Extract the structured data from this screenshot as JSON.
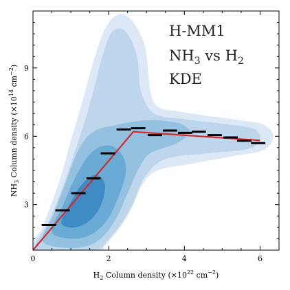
{
  "chart_data": {
    "type": "scatter",
    "annotations": {
      "line1": "H-MM1",
      "line2": "NH3 vs H2",
      "line2_parts": {
        "a": "NH",
        "a_sub": "3",
        "b": " vs H",
        "b_sub": "2"
      },
      "line3": "KDE"
    },
    "xlabel": "H2 Column density (×10^22 cm^−2)",
    "xlabel_parts": {
      "a": "H",
      "a_sub": "2",
      "b": " Column density (×10",
      "b_sup": "22",
      "c": " cm",
      "c_sup": "−2",
      "d": ")"
    },
    "ylabel": "NH3 Column density (×10^14 cm^−2)",
    "ylabel_parts": {
      "a": "NH",
      "a_sub": "3",
      "b": " Column density (×10",
      "b_sup": "14",
      "c": " cm",
      "c_sup": "−2",
      "d": ")"
    },
    "xlim": [
      0,
      6.5
    ],
    "ylim": [
      1.0,
      11.5
    ],
    "x_ticks": [
      0,
      2,
      4,
      6
    ],
    "y_ticks": [
      3,
      6,
      9
    ],
    "x_tick_labels": [
      "0",
      "2",
      "4",
      "6"
    ],
    "y_tick_labels": [
      "3",
      "6",
      "9"
    ],
    "grid": false,
    "binned_medians": {
      "name": "",
      "color": "#000000",
      "bin_halfwidth": 0.19,
      "x": [
        0.42,
        0.78,
        1.2,
        1.6,
        1.98,
        2.4,
        2.78,
        3.22,
        3.62,
        4.02,
        4.38,
        4.8,
        5.22,
        5.58,
        5.95
      ],
      "y": [
        2.1,
        2.75,
        3.5,
        4.15,
        5.25,
        6.3,
        6.35,
        6.05,
        6.25,
        6.15,
        6.2,
        6.05,
        5.95,
        5.8,
        5.7
      ]
    },
    "fit_line": {
      "color": "#d62728",
      "x": [
        0,
        2.65,
        6.0
      ],
      "y": [
        1.0,
        6.2,
        5.82
      ]
    },
    "kde_levels": {
      "colors": [
        "#dce8f5",
        "#bdd6ec",
        "#95c1e0",
        "#6aabd5",
        "#3f8bc4"
      ],
      "contours": [
        [
          [
            0.0,
            1.0
          ],
          [
            0.25,
            2.0
          ],
          [
            0.5,
            3.1
          ],
          [
            0.75,
            4.3
          ],
          [
            1.0,
            5.8
          ],
          [
            1.3,
            7.5
          ],
          [
            1.6,
            9.3
          ],
          [
            1.9,
            10.7
          ],
          [
            2.2,
            11.3
          ],
          [
            2.55,
            11.2
          ],
          [
            2.95,
            10.0
          ],
          [
            3.1,
            8.0
          ],
          [
            3.3,
            7.3
          ],
          [
            3.8,
            7.1
          ],
          [
            4.6,
            6.9
          ],
          [
            5.5,
            6.7
          ],
          [
            6.1,
            6.5
          ],
          [
            6.35,
            6.0
          ],
          [
            6.1,
            5.4
          ],
          [
            5.2,
            5.1
          ],
          [
            4.2,
            4.8
          ],
          [
            3.3,
            4.5
          ],
          [
            2.9,
            3.9
          ],
          [
            2.6,
            2.8
          ],
          [
            2.3,
            2.0
          ],
          [
            1.9,
            1.2
          ],
          [
            1.7,
            1.0
          ]
        ],
        [
          [
            0.1,
            1.0
          ],
          [
            0.4,
            2.2
          ],
          [
            0.7,
            3.4
          ],
          [
            1.0,
            4.8
          ],
          [
            1.3,
            6.3
          ],
          [
            1.6,
            8.0
          ],
          [
            1.85,
            9.6
          ],
          [
            2.1,
            10.6
          ],
          [
            2.45,
            10.6
          ],
          [
            2.75,
            9.5
          ],
          [
            2.85,
            8.0
          ],
          [
            3.2,
            7.0
          ],
          [
            4.0,
            6.75
          ],
          [
            5.0,
            6.55
          ],
          [
            5.8,
            6.35
          ],
          [
            6.0,
            5.9
          ],
          [
            5.7,
            5.45
          ],
          [
            4.6,
            5.25
          ],
          [
            3.5,
            5.0
          ],
          [
            2.95,
            4.2
          ],
          [
            2.65,
            3.1
          ],
          [
            2.35,
            2.2
          ],
          [
            1.95,
            1.4
          ],
          [
            1.6,
            1.0
          ]
        ],
        [
          [
            0.25,
            1.4
          ],
          [
            0.55,
            2.6
          ],
          [
            0.85,
            3.9
          ],
          [
            1.2,
            5.4
          ],
          [
            1.6,
            6.2
          ],
          [
            2.2,
            6.5
          ],
          [
            3.0,
            6.7
          ],
          [
            3.8,
            6.6
          ],
          [
            4.15,
            6.2
          ],
          [
            3.8,
            5.7
          ],
          [
            3.1,
            5.25
          ],
          [
            2.8,
            4.6
          ],
          [
            2.5,
            3.5
          ],
          [
            2.2,
            2.4
          ],
          [
            1.85,
            1.6
          ],
          [
            1.45,
            1.2
          ],
          [
            0.9,
            1.1
          ]
        ],
        [
          [
            0.5,
            1.8
          ],
          [
            0.8,
            3.0
          ],
          [
            1.15,
            4.3
          ],
          [
            1.55,
            5.3
          ],
          [
            2.0,
            5.6
          ],
          [
            2.35,
            5.2
          ],
          [
            2.45,
            4.4
          ],
          [
            2.25,
            3.3
          ],
          [
            1.95,
            2.3
          ],
          [
            1.55,
            1.7
          ],
          [
            1.05,
            1.5
          ]
        ],
        [
          [
            0.75,
            2.2
          ],
          [
            1.0,
            3.1
          ],
          [
            1.3,
            3.9
          ],
          [
            1.65,
            4.3
          ],
          [
            1.9,
            3.9
          ],
          [
            1.8,
            3.0
          ],
          [
            1.5,
            2.3
          ],
          [
            1.1,
            2.0
          ]
        ]
      ]
    }
  }
}
